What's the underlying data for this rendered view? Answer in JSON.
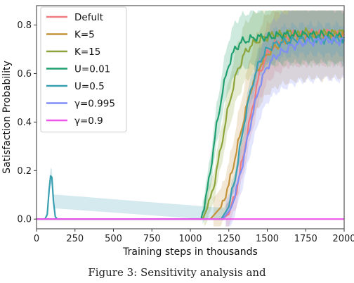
{
  "caption": "Figure 3: Sensitivity analysis and",
  "chart_data": {
    "type": "line",
    "title": "",
    "xlabel": "Training steps in thousands",
    "ylabel": "Satisfaction Probability",
    "xlim": [
      0,
      2000
    ],
    "ylim": [
      -0.04,
      0.88
    ],
    "x_ticks": [
      0,
      250,
      500,
      750,
      1000,
      1250,
      1500,
      1750,
      2000
    ],
    "x_tick_labels": [
      "0",
      "250",
      "500",
      "750",
      "1000",
      "1250",
      "1500",
      "1750",
      "2000"
    ],
    "y_ticks": [
      0.0,
      0.2,
      0.4,
      0.6,
      0.8
    ],
    "y_tick_labels": [
      "0.0",
      "0.2",
      "0.4",
      "0.6",
      "0.8"
    ],
    "legend_position": "top-left",
    "grid": false,
    "series": [
      {
        "name": "Defult",
        "color": "#f07c7f",
        "band": 0.1,
        "points": [
          [
            0,
            0
          ],
          [
            1200,
            0
          ],
          [
            1250,
            0.02
          ],
          [
            1300,
            0.12
          ],
          [
            1350,
            0.28
          ],
          [
            1400,
            0.45
          ],
          [
            1450,
            0.6
          ],
          [
            1500,
            0.68
          ],
          [
            1550,
            0.72
          ],
          [
            1600,
            0.74
          ],
          [
            1650,
            0.76
          ],
          [
            1700,
            0.76
          ],
          [
            1750,
            0.76
          ],
          [
            1800,
            0.77
          ],
          [
            1850,
            0.76
          ],
          [
            1900,
            0.77
          ],
          [
            1950,
            0.76
          ],
          [
            2000,
            0.76
          ]
        ]
      },
      {
        "name": "K=5",
        "color": "#c4923a",
        "band": 0.14,
        "points": [
          [
            0,
            0
          ],
          [
            1130,
            0
          ],
          [
            1200,
            0.05
          ],
          [
            1250,
            0.14
          ],
          [
            1300,
            0.28
          ],
          [
            1350,
            0.42
          ],
          [
            1400,
            0.55
          ],
          [
            1450,
            0.63
          ],
          [
            1500,
            0.68
          ],
          [
            1550,
            0.71
          ],
          [
            1600,
            0.73
          ],
          [
            1650,
            0.74
          ],
          [
            1700,
            0.75
          ],
          [
            1750,
            0.75
          ],
          [
            1800,
            0.76
          ],
          [
            1850,
            0.75
          ],
          [
            1900,
            0.76
          ],
          [
            1950,
            0.76
          ],
          [
            2000,
            0.76
          ]
        ]
      },
      {
        "name": "K=15",
        "color": "#8ca43a",
        "band": 0.1,
        "points": [
          [
            0,
            0
          ],
          [
            1080,
            0
          ],
          [
            1120,
            0.06
          ],
          [
            1160,
            0.16
          ],
          [
            1200,
            0.3
          ],
          [
            1250,
            0.47
          ],
          [
            1300,
            0.6
          ],
          [
            1350,
            0.68
          ],
          [
            1400,
            0.72
          ],
          [
            1450,
            0.74
          ],
          [
            1500,
            0.75
          ],
          [
            1550,
            0.76
          ],
          [
            1600,
            0.76
          ],
          [
            1650,
            0.77
          ],
          [
            1700,
            0.76
          ],
          [
            1750,
            0.77
          ],
          [
            1800,
            0.76
          ],
          [
            1850,
            0.77
          ],
          [
            1900,
            0.76
          ],
          [
            1950,
            0.77
          ],
          [
            2000,
            0.77
          ]
        ]
      },
      {
        "name": "U=0.01",
        "color": "#1f9e6e",
        "band": 0.09,
        "points": [
          [
            0,
            0
          ],
          [
            1070,
            0
          ],
          [
            1100,
            0.08
          ],
          [
            1130,
            0.2
          ],
          [
            1170,
            0.38
          ],
          [
            1210,
            0.53
          ],
          [
            1250,
            0.64
          ],
          [
            1290,
            0.7
          ],
          [
            1330,
            0.73
          ],
          [
            1380,
            0.74
          ],
          [
            1430,
            0.75
          ],
          [
            1500,
            0.75
          ],
          [
            1600,
            0.76
          ],
          [
            1700,
            0.76
          ],
          [
            1800,
            0.76
          ],
          [
            1900,
            0.76
          ],
          [
            2000,
            0.75
          ]
        ]
      },
      {
        "name": "U=0.5",
        "color": "#3a9fb0",
        "band": 0.05,
        "points": [
          [
            0,
            0
          ],
          [
            55,
            0
          ],
          [
            70,
            0.02
          ],
          [
            82,
            0.12
          ],
          [
            92,
            0.19
          ],
          [
            100,
            0.18
          ],
          [
            110,
            0.07
          ],
          [
            122,
            0.01
          ],
          [
            135,
            0
          ],
          [
            1200,
            0
          ],
          [
            1250,
            0.05
          ],
          [
            1300,
            0.2
          ],
          [
            1350,
            0.4
          ],
          [
            1400,
            0.55
          ],
          [
            1450,
            0.65
          ],
          [
            1500,
            0.7
          ],
          [
            1550,
            0.72
          ],
          [
            1600,
            0.73
          ],
          [
            1700,
            0.74
          ],
          [
            1800,
            0.74
          ],
          [
            1900,
            0.74
          ],
          [
            2000,
            0.74
          ]
        ]
      },
      {
        "name": "γ=0.995",
        "color": "#7f8ef5",
        "band": 0.13,
        "points": [
          [
            0,
            0
          ],
          [
            1210,
            0
          ],
          [
            1260,
            0.04
          ],
          [
            1300,
            0.12
          ],
          [
            1350,
            0.26
          ],
          [
            1400,
            0.42
          ],
          [
            1450,
            0.55
          ],
          [
            1500,
            0.63
          ],
          [
            1550,
            0.67
          ],
          [
            1600,
            0.69
          ],
          [
            1650,
            0.71
          ],
          [
            1700,
            0.72
          ],
          [
            1750,
            0.73
          ],
          [
            1800,
            0.73
          ],
          [
            1850,
            0.74
          ],
          [
            1900,
            0.74
          ],
          [
            1950,
            0.73
          ],
          [
            2000,
            0.74
          ]
        ]
      },
      {
        "name": "γ=0.9",
        "color": "#ee55e6",
        "band": 0.0,
        "points": [
          [
            0,
            0
          ],
          [
            2000,
            0
          ]
        ]
      }
    ]
  }
}
